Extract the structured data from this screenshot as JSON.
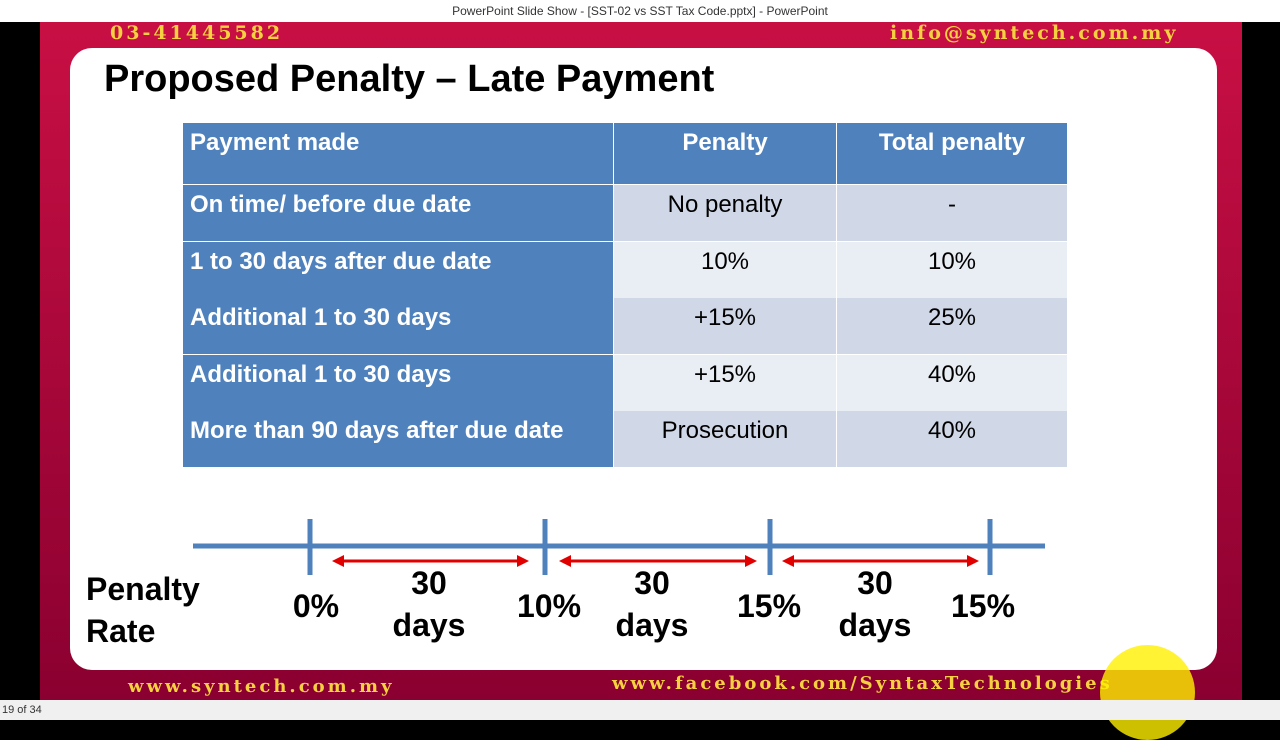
{
  "window": {
    "title": "PowerPoint Slide Show - [SST-02 vs SST Tax Code.pptx] - PowerPoint"
  },
  "slide": {
    "phone": "03-41445582",
    "email": "info@syntech.com.my",
    "title": "Proposed Penalty – Late Payment",
    "table": {
      "header": [
        "Payment made",
        "Penalty",
        "Total penalty"
      ],
      "rows": [
        [
          "On time/ before due date",
          "No penalty",
          "-"
        ],
        [
          "1 to 30 days after due date",
          "10%",
          "10%"
        ],
        [
          "Additional 1 to 30 days",
          "+15%",
          "25%"
        ],
        [
          "Additional 1 to 30 days",
          "+15%",
          "40%"
        ],
        [
          "More than 90 days after due date",
          "Prosecution",
          "40%"
        ]
      ]
    },
    "timeline": {
      "label": "Penalty Rate",
      "rates": [
        "0%",
        "10%",
        "15%",
        "15%"
      ],
      "intervals": [
        "30 days",
        "30 days",
        "30 days"
      ]
    },
    "website": "www.syntech.com.my",
    "facebook": "www.facebook.com/SyntaxTechnologies"
  },
  "status": {
    "slide_count": "19 of 34"
  }
}
